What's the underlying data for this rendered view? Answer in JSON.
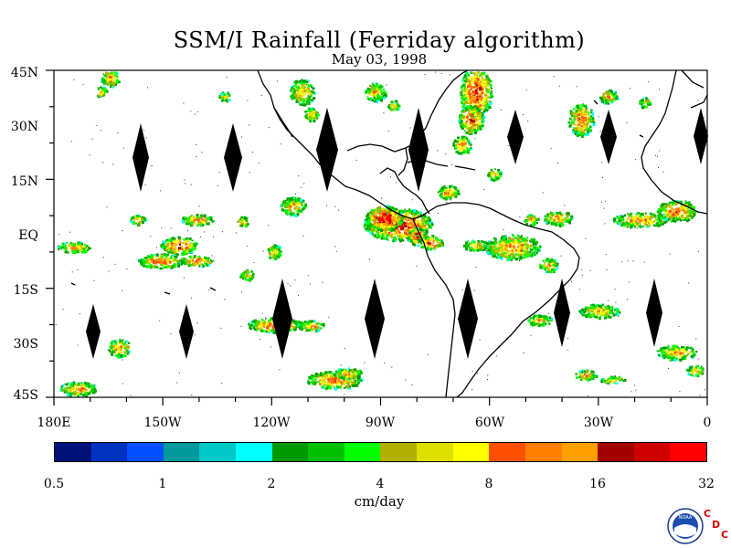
{
  "title": "SSM/I Rainfall (Ferriday algorithm)",
  "date": "May 03, 1998",
  "lat_labels": [
    "45N",
    "30N",
    "15N",
    "EQ",
    "15S",
    "30S",
    "45S"
  ],
  "lon_labels": [
    "180E",
    "150W",
    "120W",
    "90W",
    "60W",
    "30W",
    "0"
  ],
  "colorbar": {
    "colors": [
      "#00127a",
      "#0033c0",
      "#0050ff",
      "#009a9a",
      "#00c8c8",
      "#00ffff",
      "#009900",
      "#00c000",
      "#00ff00",
      "#b0b000",
      "#e0e000",
      "#ffff00",
      "#ff5000",
      "#ff8000",
      "#ffa000",
      "#a00000",
      "#d00000",
      "#ff0000"
    ],
    "tick_labels": [
      "0.5",
      "1",
      "2",
      "4",
      "8",
      "16",
      "32"
    ],
    "units": "cm/day"
  },
  "logo": {
    "agency": "NOAA",
    "letters": [
      "C",
      "D",
      "C"
    ]
  }
}
